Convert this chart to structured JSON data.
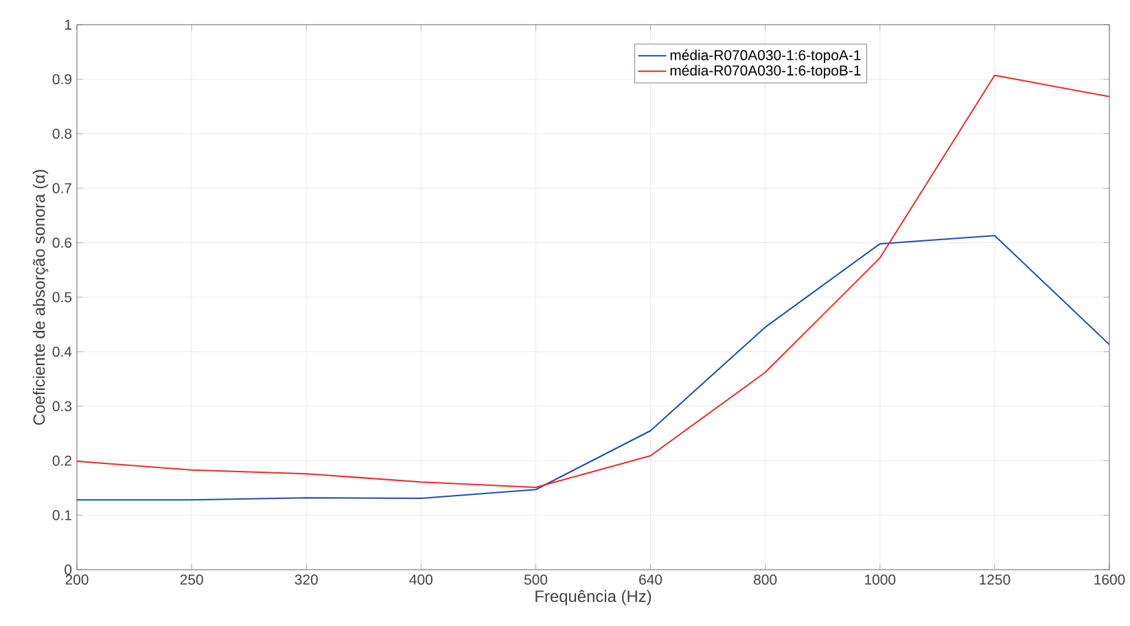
{
  "chart_data": {
    "type": "line",
    "xlabel": "Frequência (Hz)",
    "ylabel": "Coeficiente de absorção sonora (α)",
    "categories": [
      "200",
      "250",
      "320",
      "400",
      "500",
      "640",
      "800",
      "1000",
      "1250",
      "1600"
    ],
    "series": [
      {
        "name": "média-R070A030-1:6-topoA-1",
        "color": "#1f4fa8",
        "values": [
          0.128,
          0.128,
          0.132,
          0.131,
          0.147,
          0.255,
          0.445,
          0.598,
          0.613,
          0.413
        ]
      },
      {
        "name": "média-R070A030-1:6-topoB-1",
        "color": "#ee2a2a",
        "values": [
          0.199,
          0.183,
          0.176,
          0.161,
          0.151,
          0.209,
          0.362,
          0.572,
          0.907,
          0.868
        ]
      }
    ],
    "ylim": [
      0,
      1
    ],
    "yticks": [
      0,
      0.1,
      0.2,
      0.3,
      0.4,
      0.5,
      0.6,
      0.7,
      0.8,
      0.9,
      1
    ],
    "grid": true,
    "legend": "top right",
    "marker": "none",
    "line_style": "solid"
  }
}
